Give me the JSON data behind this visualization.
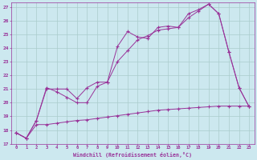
{
  "title": "",
  "xlabel": "Windchill (Refroidissement éolien,°C)",
  "ylabel": "",
  "bg_color": "#cce8ef",
  "grid_color": "#aacccc",
  "line_color": "#993399",
  "xlim": [
    -0.5,
    23.5
  ],
  "ylim": [
    17,
    27.3
  ],
  "xticks": [
    0,
    1,
    2,
    3,
    4,
    5,
    6,
    7,
    8,
    9,
    10,
    11,
    12,
    13,
    14,
    15,
    16,
    17,
    18,
    19,
    20,
    21,
    22,
    23
  ],
  "yticks": [
    17,
    18,
    19,
    20,
    21,
    22,
    23,
    24,
    25,
    26,
    27
  ],
  "line1_x": [
    0,
    1,
    2,
    3,
    4,
    5,
    6,
    7,
    8,
    9,
    10,
    11,
    12,
    13,
    14,
    15,
    16,
    17,
    18,
    19,
    20,
    21,
    22,
    23
  ],
  "line1_y": [
    17.8,
    17.4,
    18.7,
    21.1,
    20.8,
    20.4,
    20.0,
    20.0,
    21.2,
    21.5,
    24.1,
    25.2,
    24.8,
    24.7,
    25.5,
    25.6,
    25.5,
    26.5,
    26.8,
    27.2,
    26.5,
    23.7,
    21.1,
    19.7
  ],
  "line2_x": [
    0,
    1,
    2,
    3,
    4,
    5,
    6,
    7,
    8,
    9,
    10,
    11,
    12,
    13,
    14,
    15,
    16,
    17,
    18,
    19,
    20,
    21,
    22,
    23
  ],
  "line2_y": [
    17.8,
    17.4,
    18.7,
    21.0,
    21.0,
    21.0,
    20.3,
    21.1,
    21.5,
    21.5,
    23.0,
    23.8,
    24.6,
    24.9,
    25.3,
    25.4,
    25.5,
    26.2,
    26.7,
    27.2,
    26.5,
    23.7,
    21.1,
    19.7
  ],
  "line3_x": [
    0,
    1,
    2,
    3,
    4,
    5,
    6,
    7,
    8,
    9,
    10,
    11,
    12,
    13,
    14,
    15,
    16,
    17,
    18,
    19,
    20,
    21,
    22,
    23
  ],
  "line3_y": [
    17.8,
    17.4,
    18.4,
    18.4,
    18.5,
    18.6,
    18.7,
    18.75,
    18.85,
    18.95,
    19.05,
    19.15,
    19.25,
    19.35,
    19.45,
    19.5,
    19.55,
    19.6,
    19.65,
    19.7,
    19.75,
    19.75,
    19.75,
    19.75
  ]
}
